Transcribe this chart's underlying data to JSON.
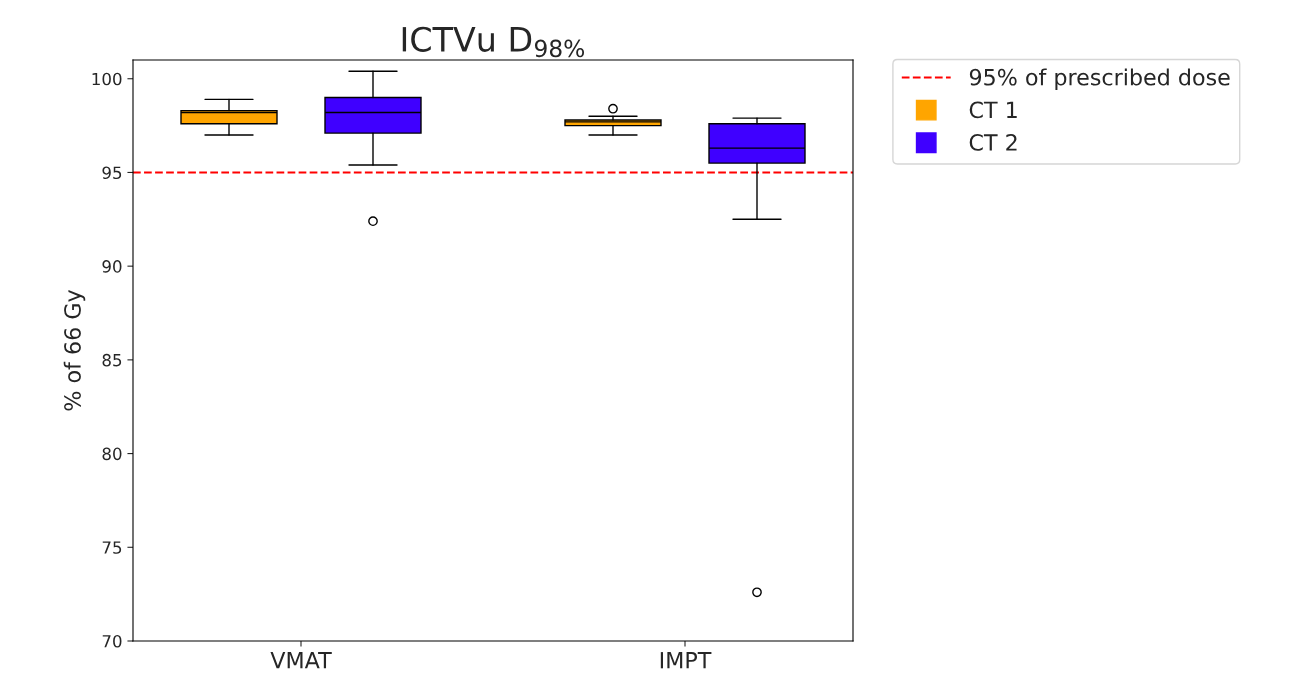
{
  "chart_data": {
    "type": "box",
    "title": "ICTVu D$_{98%}$",
    "ylabel": "% of 66 Gy",
    "categories": [
      "VMAT",
      "IMPT"
    ],
    "series": [
      {
        "name": "CT 1",
        "color": "#ffa500",
        "boxes": [
          {
            "low": 97.0,
            "q1": 97.6,
            "median": 98.2,
            "q3": 98.3,
            "high": 98.9
          },
          {
            "low": 97.0,
            "q1": 97.5,
            "median": 97.7,
            "q3": 97.8,
            "high": 98.0,
            "outliers": [
              98.4
            ]
          }
        ]
      },
      {
        "name": "CT 2",
        "color": "#3f00ff",
        "boxes": [
          {
            "low": 95.4,
            "q1": 97.1,
            "median": 98.2,
            "q3": 99.0,
            "high": 100.4,
            "outliers": [
              92.4
            ]
          },
          {
            "low": 92.5,
            "q1": 95.5,
            "median": 96.3,
            "q3": 97.6,
            "high": 97.9,
            "outliers": [
              72.6
            ]
          }
        ]
      }
    ],
    "ylim": [
      70,
      101
    ],
    "yticks": [
      70,
      75,
      80,
      85,
      90,
      95,
      100
    ],
    "ref_lines": [
      {
        "axis": "y",
        "value": 95,
        "label": "95% of prescribed dose",
        "color": "#ff0000",
        "line_style": "dashed"
      }
    ],
    "grid": false,
    "legend": "top right"
  }
}
